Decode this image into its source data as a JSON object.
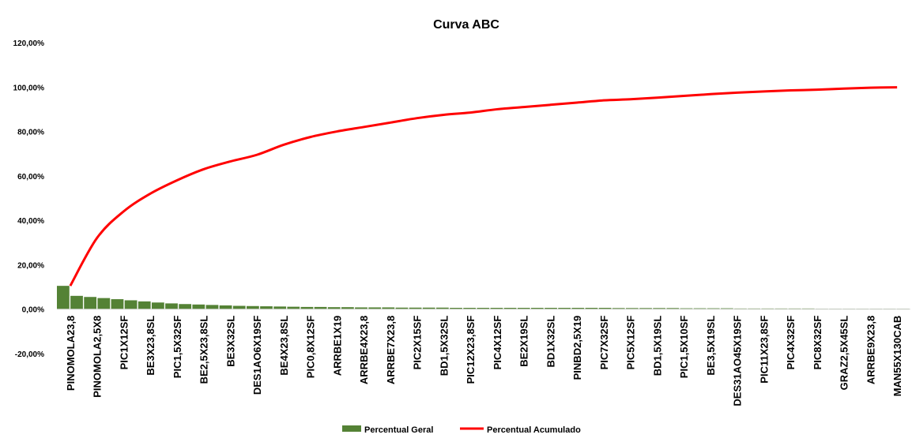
{
  "chart_data": {
    "type": "bar",
    "title": "Curva ABC",
    "xlabel": "",
    "ylabel": "",
    "ylim": [
      -0.2,
      1.2
    ],
    "y_ticks": [
      "120,00%",
      "100,00%",
      "80,00%",
      "60,00%",
      "40,00%",
      "20,00%",
      "0,00%",
      "-20,00%"
    ],
    "y_tick_values": [
      1.2,
      1.0,
      0.8,
      0.6,
      0.4,
      0.2,
      0.0,
      -0.2
    ],
    "x_tick_labels": [
      "PINOMOLA23,8",
      "PINOMOLA2,5X8",
      "PIC1X12SF",
      "BE3X23,8SL",
      "PIC1,5X32SF",
      "BE2,5X23,8SL",
      "BE3X32SL",
      "DES1AO6X19SF",
      "BE4X23,8SL",
      "PIC0,8X12SF",
      "ARRBE1X19",
      "ARRBE4X23,8",
      "ARRBE7X23,8",
      "PIC2X15SF",
      "BD1,5X32SL",
      "PIC12X23,8SF",
      "PIC4X12SF",
      "BE2X19SL",
      "BD1X32SL",
      "PINBD2,5X19",
      "PIC7X32SF",
      "PIC5X12SF",
      "BD1,5X19SL",
      "PIC1,5X10SF",
      "BE3,5X19SL",
      "DES31AO45X19SF",
      "PIC11X23,8SF",
      "PIC4X32SF",
      "PIC8X32SF",
      "GRAZ2,5X45SL",
      "ARRBE9X23,8",
      "MAN55X130CAB"
    ],
    "grid": false,
    "legend_position": "bottom",
    "series": [
      {
        "name": "Percentual Geral",
        "type": "bar",
        "color": "#548235",
        "x": [
          0,
          1,
          2,
          3,
          4,
          5,
          6,
          7,
          8,
          9,
          10,
          11,
          12,
          13,
          14,
          15,
          16,
          17,
          18,
          19,
          20,
          21,
          22,
          23,
          24,
          25,
          26,
          27,
          28,
          29,
          30,
          31,
          32,
          33,
          34,
          35,
          36,
          37,
          38,
          39,
          40,
          41,
          42,
          43,
          44,
          45,
          46,
          47,
          48,
          49,
          50,
          51,
          52,
          53,
          54,
          55,
          56,
          57,
          58,
          59,
          60,
          61,
          62
        ],
        "values": [
          0.105,
          0.06,
          0.055,
          0.05,
          0.045,
          0.04,
          0.035,
          0.03,
          0.026,
          0.023,
          0.021,
          0.019,
          0.017,
          0.015,
          0.014,
          0.013,
          0.012,
          0.011,
          0.01,
          0.01,
          0.009,
          0.009,
          0.008,
          0.008,
          0.008,
          0.007,
          0.007,
          0.007,
          0.007,
          0.006,
          0.006,
          0.006,
          0.006,
          0.006,
          0.006,
          0.006,
          0.006,
          0.006,
          0.006,
          0.006,
          0.006,
          0.005,
          0.005,
          0.005,
          0.005,
          0.005,
          0.004,
          0.004,
          0.004,
          0.004,
          0.003,
          0.003,
          0.003,
          0.003,
          0.003,
          0.003,
          0.002,
          0.002,
          0.002,
          0.002,
          0.002,
          0.002,
          0.002
        ]
      },
      {
        "name": "Percentual Acumulado",
        "type": "line",
        "color": "#ff0000",
        "x": [
          0,
          1,
          2,
          3,
          4,
          5,
          6,
          7,
          8,
          9,
          10,
          11,
          12,
          13,
          14,
          15,
          16,
          17,
          18,
          19,
          20,
          21,
          22,
          23,
          24,
          25,
          26,
          27,
          28,
          29,
          30,
          31
        ],
        "values": [
          0.105,
          0.32,
          0.44,
          0.52,
          0.58,
          0.63,
          0.665,
          0.695,
          0.74,
          0.775,
          0.8,
          0.82,
          0.84,
          0.86,
          0.875,
          0.885,
          0.9,
          0.91,
          0.92,
          0.93,
          0.94,
          0.945,
          0.952,
          0.96,
          0.968,
          0.975,
          0.98,
          0.985,
          0.988,
          0.993,
          0.997,
          0.999
        ]
      }
    ]
  }
}
